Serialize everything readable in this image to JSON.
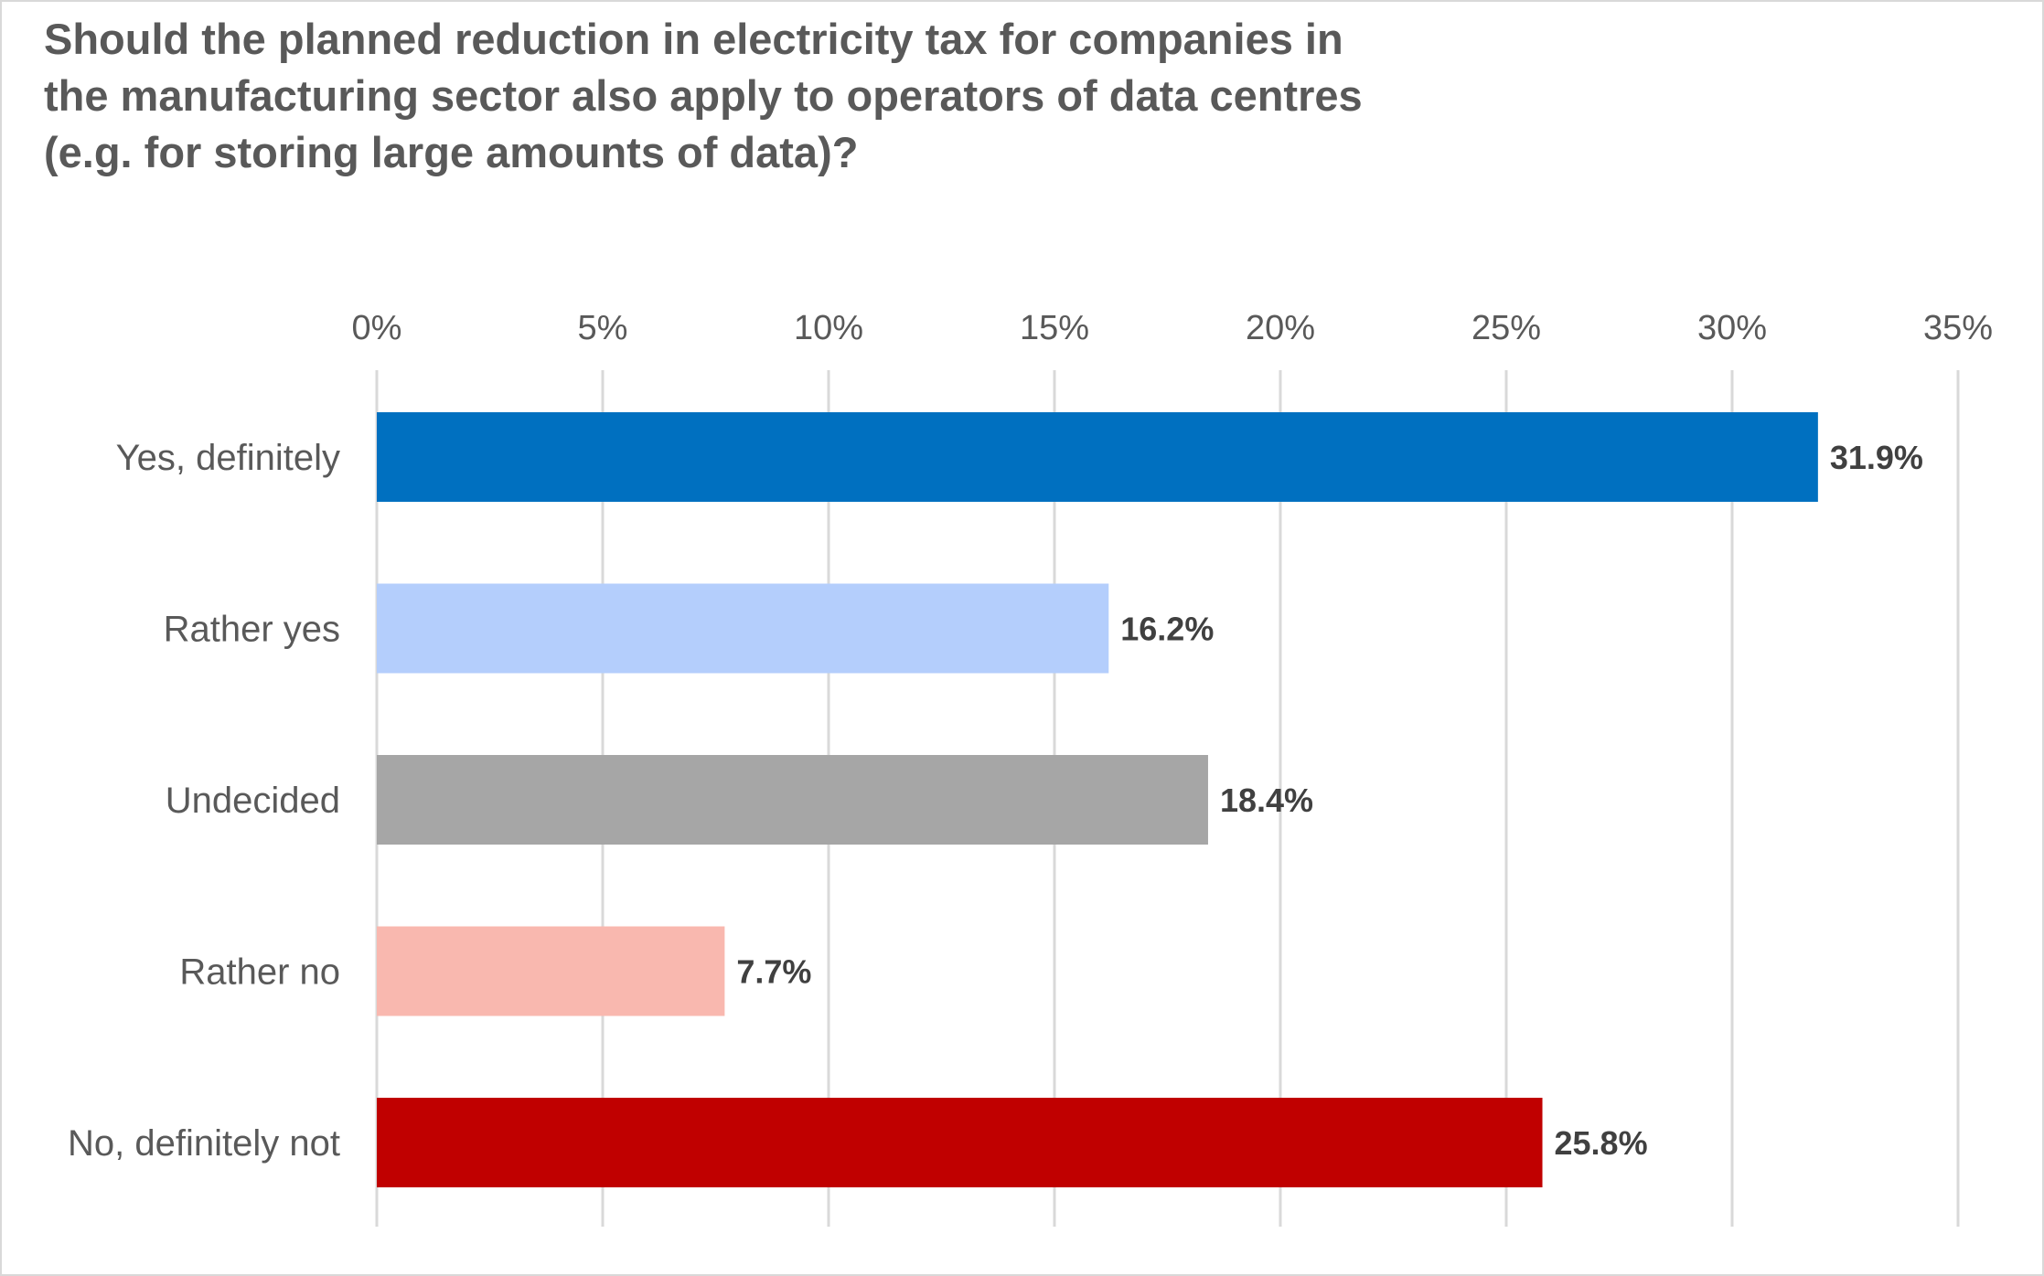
{
  "chart_data": {
    "type": "bar",
    "orientation": "horizontal",
    "title_lines": [
      "Should the planned reduction in electricity tax for companies in",
      "the manufacturing sector also apply to operators of data centres",
      "(e.g. for storing large amounts of data)?"
    ],
    "title": "Should the planned reduction in electricity tax for companies in the manufacturing sector also apply to operators of data centres (e.g. for storing large amounts of data)?",
    "categories": [
      "Yes, definitely",
      "Rather yes",
      "Undecided",
      "Rather no",
      "No, definitely not"
    ],
    "values": [
      31.9,
      16.2,
      18.4,
      7.7,
      25.8
    ],
    "data_labels": [
      "31.9%",
      "16.2%",
      "18.4%",
      "7.7%",
      "25.8%"
    ],
    "colors": [
      "#0070C0",
      "#B4CEFC",
      "#A6A6A6",
      "#F9B8AF",
      "#C00000"
    ],
    "xlim": [
      0,
      35
    ],
    "x_ticks": [
      0,
      5,
      10,
      15,
      20,
      25,
      30,
      35
    ],
    "x_tick_labels": [
      "0%",
      "5%",
      "10%",
      "15%",
      "20%",
      "25%",
      "30%",
      "35%"
    ],
    "x_axis_position": "top",
    "xlabel": "",
    "ylabel": "",
    "grid": true,
    "legend": "none"
  }
}
